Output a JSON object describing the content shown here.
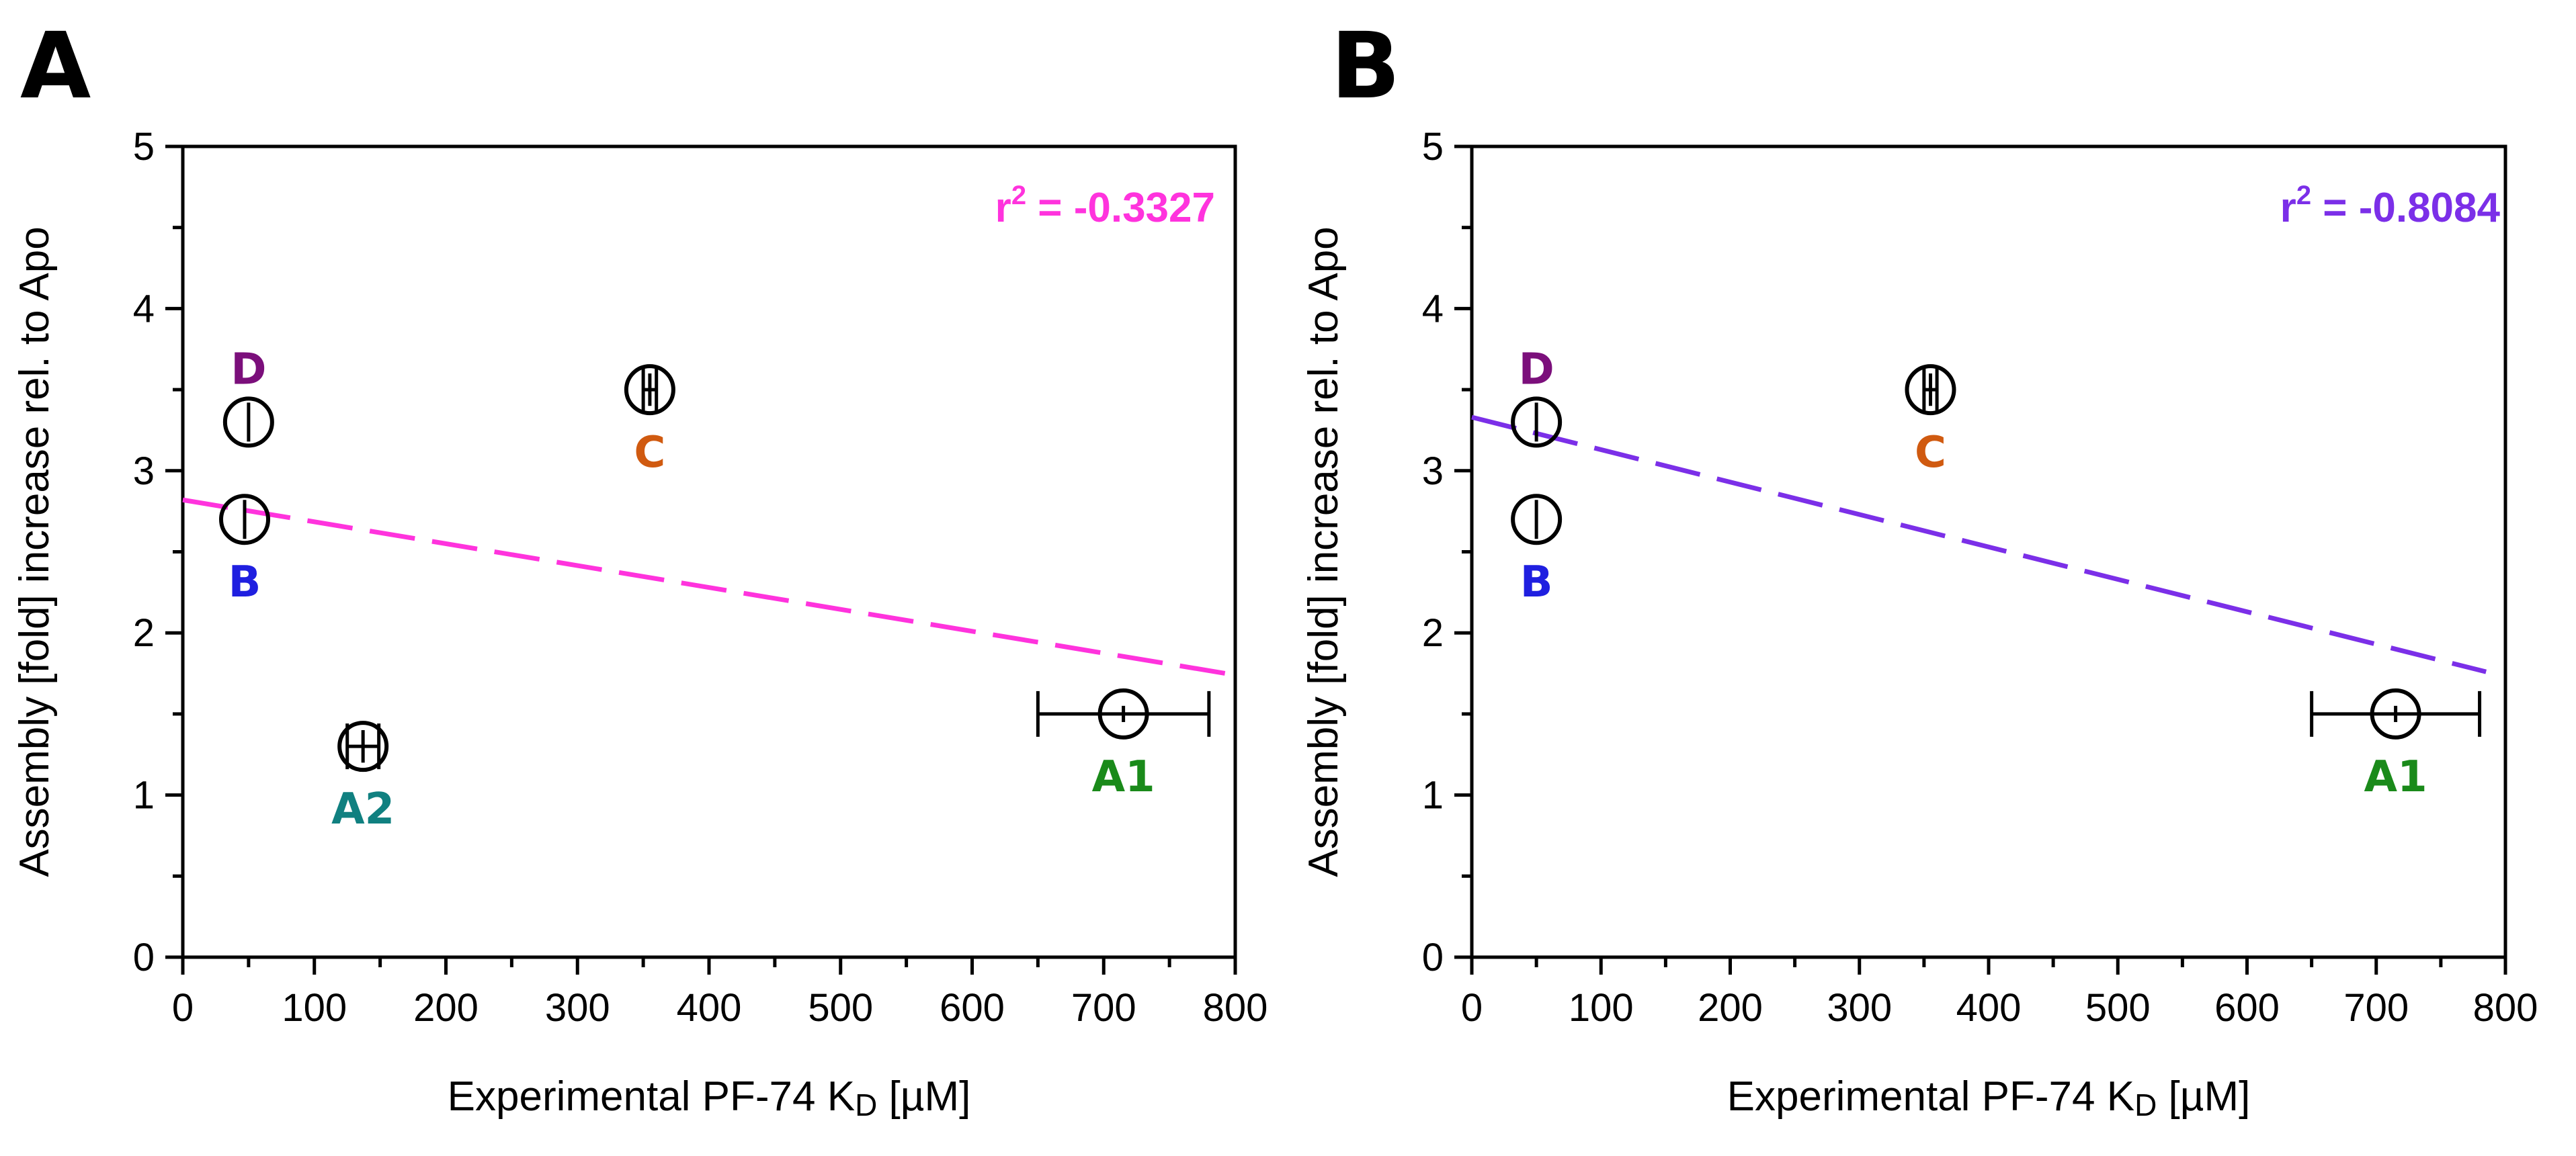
{
  "chart_data": [
    {
      "panel": "A",
      "type": "scatter",
      "xlabel_main": "Experimental PF-74 K",
      "xlabel_sub": "D",
      "xlabel_unit": " [µM]",
      "ylabel": "Assembly [fold] increase rel. to Apo",
      "xlim": [
        0,
        800
      ],
      "ylim": [
        0,
        5
      ],
      "xticks": [
        "0",
        "100",
        "200",
        "300",
        "400",
        "500",
        "600",
        "700",
        "800"
      ],
      "yticks": [
        "0",
        "1",
        "2",
        "3",
        "4",
        "5"
      ],
      "points": [
        {
          "label": "D",
          "x": 50,
          "y": 3.3,
          "xerr": 0,
          "yerr": 0.12,
          "color": "#7b0f7b",
          "label_pos": "above"
        },
        {
          "label": "B",
          "x": 47,
          "y": 2.7,
          "xerr": 0,
          "yerr": 0.12,
          "color": "#1f1fe0",
          "label_pos": "below"
        },
        {
          "label": "C",
          "x": 355,
          "y": 3.5,
          "xerr": 5,
          "yerr": 0.1,
          "color": "#d05a10",
          "label_pos": "below"
        },
        {
          "label": "A2",
          "x": 137,
          "y": 1.3,
          "xerr": 12,
          "yerr": 0.1,
          "color": "#108080",
          "label_pos": "below"
        },
        {
          "label": "A1",
          "x": 715,
          "y": 1.5,
          "xerr": 65,
          "yerr": 0.05,
          "color": "#1a8a1a",
          "label_pos": "below"
        }
      ],
      "fit": {
        "x0": 0,
        "y0": 2.82,
        "x1": 800,
        "y1": 1.74,
        "color": "#ff33dd",
        "style": "dashed"
      },
      "annotation": {
        "r": "r",
        "sup": "2",
        "rest": " = -0.3327",
        "color": "#ff33dd"
      }
    },
    {
      "panel": "B",
      "type": "scatter",
      "xlabel_main": "Experimental PF-74 K",
      "xlabel_sub": "D",
      "xlabel_unit": " [µM]",
      "ylabel": "Assembly [fold] increase rel. to Apo",
      "xlim": [
        0,
        800
      ],
      "ylim": [
        0,
        5
      ],
      "xticks": [
        "0",
        "100",
        "200",
        "300",
        "400",
        "500",
        "600",
        "700",
        "800"
      ],
      "yticks": [
        "0",
        "1",
        "2",
        "3",
        "4",
        "5"
      ],
      "points": [
        {
          "label": "D",
          "x": 50,
          "y": 3.3,
          "xerr": 0,
          "yerr": 0.12,
          "color": "#7b0f7b",
          "label_pos": "above"
        },
        {
          "label": "B",
          "x": 50,
          "y": 2.7,
          "xerr": 0,
          "yerr": 0.12,
          "color": "#1f1fe0",
          "label_pos": "below"
        },
        {
          "label": "C",
          "x": 355,
          "y": 3.5,
          "xerr": 5,
          "yerr": 0.1,
          "color": "#d05a10",
          "label_pos": "below"
        },
        {
          "label": "A1",
          "x": 715,
          "y": 1.5,
          "xerr": 65,
          "yerr": 0.05,
          "color": "#1a8a1a",
          "label_pos": "below"
        }
      ],
      "fit": {
        "x0": 0,
        "y0": 3.33,
        "x1": 785,
        "y1": 1.76,
        "color": "#7b2fe8",
        "style": "dashed"
      },
      "annotation": {
        "r": "r",
        "sup": "2",
        "rest": " = -0.8084",
        "color": "#7b2fe8"
      }
    }
  ]
}
